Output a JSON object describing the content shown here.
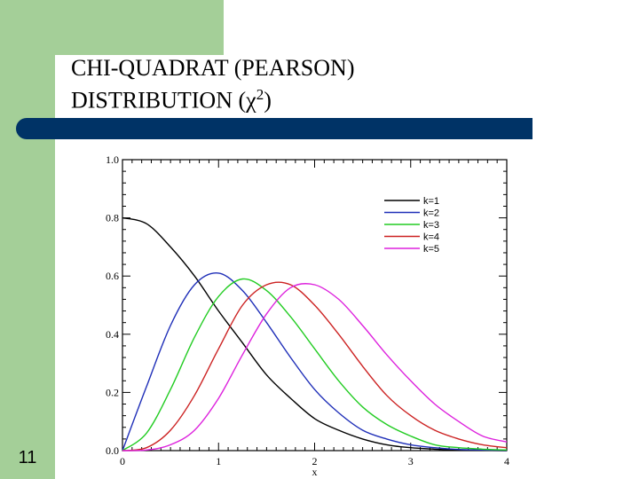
{
  "slide": {
    "title_line1": "CHI-QUADRAT (PEARSON)",
    "title_line2_prefix": "DISTRIBUTION (",
    "title_chi": "χ",
    "title_exponent": "2",
    "title_line2_suffix": ")",
    "number": "11"
  },
  "colors": {
    "sidebar": "#a4cf98",
    "title_bar": "#003366"
  },
  "chart_data": {
    "type": "line",
    "title": "",
    "xlabel": "x",
    "ylabel": "",
    "xlim": [
      0,
      4
    ],
    "ylim": [
      0,
      1
    ],
    "x_ticks": [
      0,
      1,
      2,
      3,
      4
    ],
    "y_ticks": [
      "0.0",
      "0.2",
      "0.4",
      "0.6",
      "0.8",
      "1.0"
    ],
    "grid": false,
    "legend_position": "top-right",
    "x": [
      0,
      0.25,
      0.5,
      0.75,
      1,
      1.25,
      1.5,
      1.75,
      2,
      2.25,
      2.5,
      2.75,
      3,
      3.25,
      3.5,
      3.75,
      4
    ],
    "series": [
      {
        "name": "k=1",
        "color": "#000000",
        "values": [
          0.8,
          0.78,
          0.7,
          0.6,
          0.48,
          0.37,
          0.26,
          0.18,
          0.11,
          0.07,
          0.04,
          0.02,
          0.01,
          0.005,
          0.002,
          0.001,
          0.0
        ]
      },
      {
        "name": "k=2",
        "color": "#1f2fb8",
        "values": [
          0.0,
          0.22,
          0.43,
          0.57,
          0.61,
          0.55,
          0.44,
          0.32,
          0.21,
          0.13,
          0.07,
          0.04,
          0.02,
          0.01,
          0.004,
          0.002,
          0.001
        ]
      },
      {
        "name": "k=3",
        "color": "#22cc22",
        "values": [
          0.0,
          0.06,
          0.21,
          0.39,
          0.53,
          0.59,
          0.55,
          0.46,
          0.35,
          0.24,
          0.15,
          0.09,
          0.05,
          0.02,
          0.01,
          0.005,
          0.002
        ]
      },
      {
        "name": "k=4",
        "color": "#cc2222",
        "values": [
          0.0,
          0.01,
          0.07,
          0.19,
          0.35,
          0.5,
          0.57,
          0.57,
          0.5,
          0.4,
          0.29,
          0.19,
          0.12,
          0.07,
          0.04,
          0.02,
          0.01
        ]
      },
      {
        "name": "k=5",
        "color": "#dd22dd",
        "values": [
          0.0,
          0.002,
          0.02,
          0.07,
          0.18,
          0.33,
          0.47,
          0.56,
          0.57,
          0.52,
          0.43,
          0.33,
          0.24,
          0.16,
          0.1,
          0.05,
          0.03
        ]
      }
    ]
  }
}
